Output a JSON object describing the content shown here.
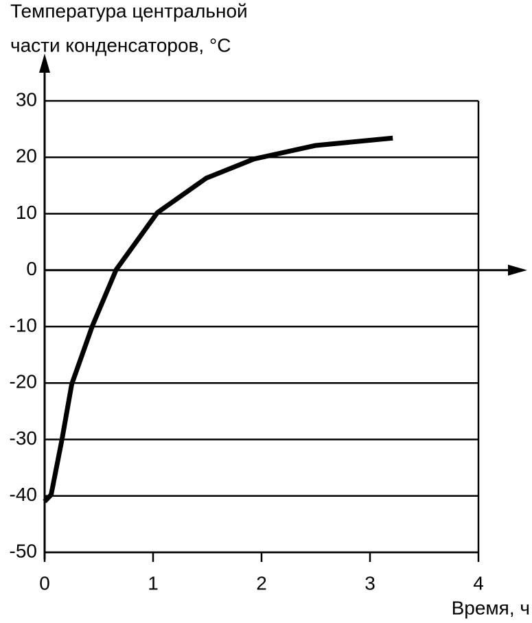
{
  "chart_data": {
    "type": "line",
    "y_label": [
      "Температура центральной",
      "части конденсаторов, °C"
    ],
    "x_label": "Время, ч",
    "x": [
      0,
      0.06,
      0.16,
      0.25,
      0.44,
      0.66,
      1.04,
      1.49,
      1.93,
      2.5,
      3.21
    ],
    "values": [
      -41,
      -39.8,
      -30,
      -20.2,
      -9.9,
      0.1,
      10.2,
      16.3,
      19.7,
      22.1,
      23.4
    ],
    "color": "#000000",
    "xlim": [
      0,
      4
    ],
    "xticks": [
      0,
      1,
      2,
      3,
      4
    ],
    "ylim": [
      -50,
      30
    ],
    "yticks": [
      -50,
      -40,
      -30,
      -20,
      -10,
      0,
      10,
      20,
      30
    ],
    "grid": true
  }
}
